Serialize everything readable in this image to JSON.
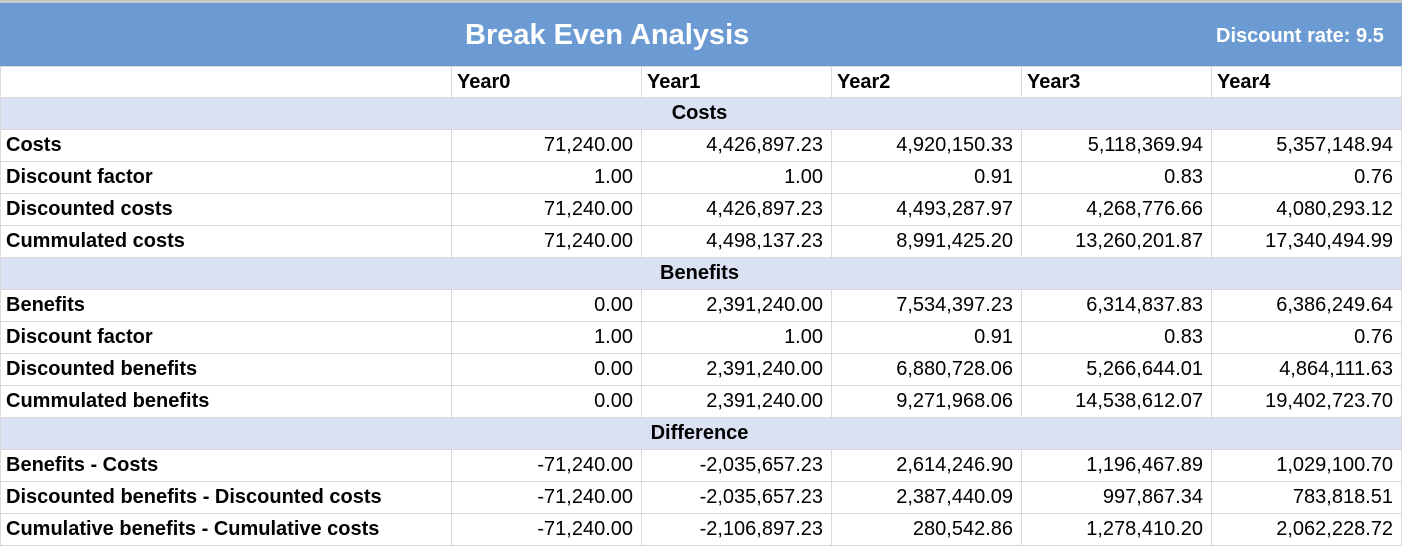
{
  "title": "Break Even Analysis",
  "discount_rate_label": "Discount rate: 9.5",
  "years": [
    "Year0",
    "Year1",
    "Year2",
    "Year3",
    "Year4"
  ],
  "sections": [
    {
      "name": "Costs",
      "rows": [
        {
          "label": "Costs",
          "values": [
            "71,240.00",
            "4,426,897.23",
            "4,920,150.33",
            "5,118,369.94",
            "5,357,148.94"
          ]
        },
        {
          "label": "Discount factor",
          "values": [
            "1.00",
            "1.00",
            "0.91",
            "0.83",
            "0.76"
          ]
        },
        {
          "label": "Discounted costs",
          "values": [
            "71,240.00",
            "4,426,897.23",
            "4,493,287.97",
            "4,268,776.66",
            "4,080,293.12"
          ]
        },
        {
          "label": "Cummulated costs",
          "values": [
            "71,240.00",
            "4,498,137.23",
            "8,991,425.20",
            "13,260,201.87",
            "17,340,494.99"
          ]
        }
      ]
    },
    {
      "name": "Benefits",
      "rows": [
        {
          "label": "Benefits",
          "values": [
            "0.00",
            "2,391,240.00",
            "7,534,397.23",
            "6,314,837.83",
            "6,386,249.64"
          ]
        },
        {
          "label": "Discount factor",
          "values": [
            "1.00",
            "1.00",
            "0.91",
            "0.83",
            "0.76"
          ]
        },
        {
          "label": "Discounted benefits",
          "values": [
            "0.00",
            "2,391,240.00",
            "6,880,728.06",
            "5,266,644.01",
            "4,864,111.63"
          ]
        },
        {
          "label": "Cummulated benefits",
          "values": [
            "0.00",
            "2,391,240.00",
            "9,271,968.06",
            "14,538,612.07",
            "19,402,723.70"
          ]
        }
      ]
    },
    {
      "name": "Difference",
      "rows": [
        {
          "label": "Benefits - Costs",
          "values": [
            "-71,240.00",
            "-2,035,657.23",
            "2,614,246.90",
            "1,196,467.89",
            "1,029,100.70"
          ]
        },
        {
          "label": "Discounted benefits - Discounted costs",
          "values": [
            "-71,240.00",
            "-2,035,657.23",
            "2,387,440.09",
            "997,867.34",
            "783,818.51"
          ]
        },
        {
          "label": "Cumulative benefits - Cumulative costs",
          "values": [
            "-71,240.00",
            "-2,106,897.23",
            "280,542.86",
            "1,278,410.20",
            "2,062,228.72"
          ]
        }
      ]
    }
  ]
}
